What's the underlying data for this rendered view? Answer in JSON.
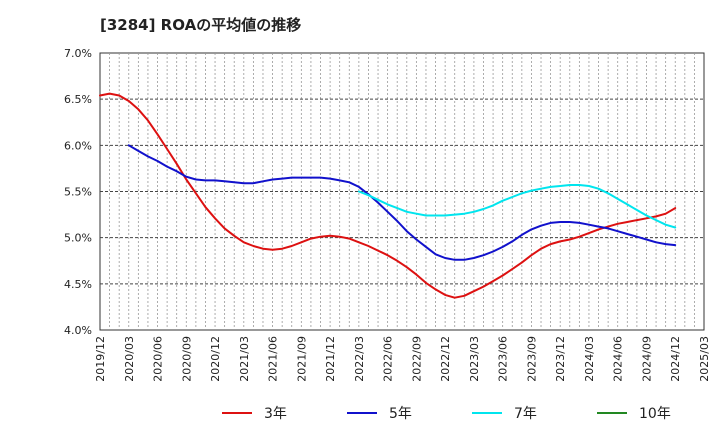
{
  "title": "[3284]  ROAの平均値の推移",
  "chart_data": {
    "type": "line",
    "title": "[3284]  ROAの平均値の推移",
    "xlabel": "",
    "ylabel": "",
    "ylim": [
      4.0,
      7.0
    ],
    "y_ticks": [
      "4.0%",
      "4.5%",
      "5.0%",
      "5.5%",
      "6.0%",
      "6.5%",
      "7.0%"
    ],
    "x_ticks": [
      "2019/12",
      "2020/03",
      "2020/06",
      "2020/09",
      "2020/12",
      "2021/03",
      "2021/06",
      "2021/09",
      "2021/12",
      "2022/03",
      "2022/06",
      "2022/09",
      "2022/12",
      "2023/03",
      "2023/06",
      "2023/09",
      "2023/12",
      "2024/03",
      "2024/06",
      "2024/09",
      "2024/12",
      "2025/03"
    ],
    "grid": true,
    "legend_position": "bottom",
    "series": [
      {
        "name": "3年",
        "color": "#dd1111",
        "x": [
          "2019/12",
          "2020/01",
          "2020/02",
          "2020/03",
          "2020/04",
          "2020/05",
          "2020/06",
          "2020/07",
          "2020/08",
          "2020/09",
          "2020/10",
          "2020/11",
          "2020/12",
          "2021/01",
          "2021/02",
          "2021/03",
          "2021/04",
          "2021/05",
          "2021/06",
          "2021/07",
          "2021/08",
          "2021/09",
          "2021/10",
          "2021/11",
          "2021/12",
          "2022/01",
          "2022/02",
          "2022/03",
          "2022/04",
          "2022/05",
          "2022/06",
          "2022/07",
          "2022/08",
          "2022/09",
          "2022/10",
          "2022/11",
          "2022/12",
          "2023/01",
          "2023/02",
          "2023/03",
          "2023/04",
          "2023/05",
          "2023/06",
          "2023/07",
          "2023/08",
          "2023/09",
          "2023/10",
          "2023/11",
          "2023/12",
          "2024/01",
          "2024/02",
          "2024/03",
          "2024/04",
          "2024/05",
          "2024/06",
          "2024/07",
          "2024/08",
          "2024/09",
          "2024/10",
          "2024/11",
          "2024/12"
        ],
        "values": [
          6.54,
          6.56,
          6.54,
          6.48,
          6.39,
          6.27,
          6.12,
          5.96,
          5.8,
          5.63,
          5.48,
          5.33,
          5.21,
          5.1,
          5.02,
          4.95,
          4.91,
          4.88,
          4.87,
          4.88,
          4.91,
          4.95,
          4.99,
          5.01,
          5.02,
          5.01,
          4.99,
          4.95,
          4.91,
          4.86,
          4.81,
          4.75,
          4.68,
          4.6,
          4.51,
          4.44,
          4.38,
          4.35,
          4.37,
          4.42,
          4.47,
          4.53,
          4.59,
          4.66,
          4.73,
          4.81,
          4.88,
          4.93,
          4.96,
          4.98,
          5.01,
          5.05,
          5.09,
          5.12,
          5.15,
          5.17,
          5.19,
          5.21,
          5.23,
          5.26,
          5.32
        ]
      },
      {
        "name": "5年",
        "color": "#1111cc",
        "x": [
          "2020/03",
          "2020/04",
          "2020/05",
          "2020/06",
          "2020/07",
          "2020/08",
          "2020/09",
          "2020/10",
          "2020/11",
          "2020/12",
          "2021/01",
          "2021/02",
          "2021/03",
          "2021/04",
          "2021/05",
          "2021/06",
          "2021/07",
          "2021/08",
          "2021/09",
          "2021/10",
          "2021/11",
          "2021/12",
          "2022/01",
          "2022/02",
          "2022/03",
          "2022/04",
          "2022/05",
          "2022/06",
          "2022/07",
          "2022/08",
          "2022/09",
          "2022/10",
          "2022/11",
          "2022/12",
          "2023/01",
          "2023/02",
          "2023/03",
          "2023/04",
          "2023/05",
          "2023/06",
          "2023/07",
          "2023/08",
          "2023/09",
          "2023/10",
          "2023/11",
          "2023/12",
          "2024/01",
          "2024/02",
          "2024/03",
          "2024/04",
          "2024/05",
          "2024/06",
          "2024/07",
          "2024/08",
          "2024/09",
          "2024/10",
          "2024/11",
          "2024/12"
        ],
        "values": [
          6.0,
          5.94,
          5.88,
          5.83,
          5.77,
          5.72,
          5.66,
          5.63,
          5.62,
          5.62,
          5.61,
          5.6,
          5.59,
          5.59,
          5.61,
          5.63,
          5.64,
          5.65,
          5.65,
          5.65,
          5.65,
          5.64,
          5.62,
          5.6,
          5.55,
          5.47,
          5.38,
          5.28,
          5.18,
          5.07,
          4.98,
          4.9,
          4.82,
          4.78,
          4.76,
          4.76,
          4.78,
          4.81,
          4.85,
          4.9,
          4.96,
          5.03,
          5.09,
          5.13,
          5.16,
          5.17,
          5.17,
          5.16,
          5.14,
          5.12,
          5.1,
          5.07,
          5.04,
          5.01,
          4.98,
          4.95,
          4.93,
          4.92
        ]
      },
      {
        "name": "7年",
        "color": "#00e5ee",
        "x": [
          "2022/03",
          "2022/04",
          "2022/05",
          "2022/06",
          "2022/07",
          "2022/08",
          "2022/09",
          "2022/10",
          "2022/11",
          "2022/12",
          "2023/01",
          "2023/02",
          "2023/03",
          "2023/04",
          "2023/05",
          "2023/06",
          "2023/07",
          "2023/08",
          "2023/09",
          "2023/10",
          "2023/11",
          "2023/12",
          "2024/01",
          "2024/02",
          "2024/03",
          "2024/04",
          "2024/05",
          "2024/06",
          "2024/07",
          "2024/08",
          "2024/09",
          "2024/10",
          "2024/11",
          "2024/12"
        ],
        "values": [
          5.5,
          5.46,
          5.41,
          5.36,
          5.32,
          5.28,
          5.26,
          5.24,
          5.24,
          5.24,
          5.25,
          5.26,
          5.28,
          5.31,
          5.35,
          5.4,
          5.44,
          5.48,
          5.51,
          5.53,
          5.55,
          5.56,
          5.57,
          5.57,
          5.56,
          5.53,
          5.48,
          5.42,
          5.36,
          5.3,
          5.24,
          5.19,
          5.14,
          5.11
        ]
      },
      {
        "name": "10年",
        "color": "#228822",
        "x": [],
        "values": []
      }
    ]
  }
}
